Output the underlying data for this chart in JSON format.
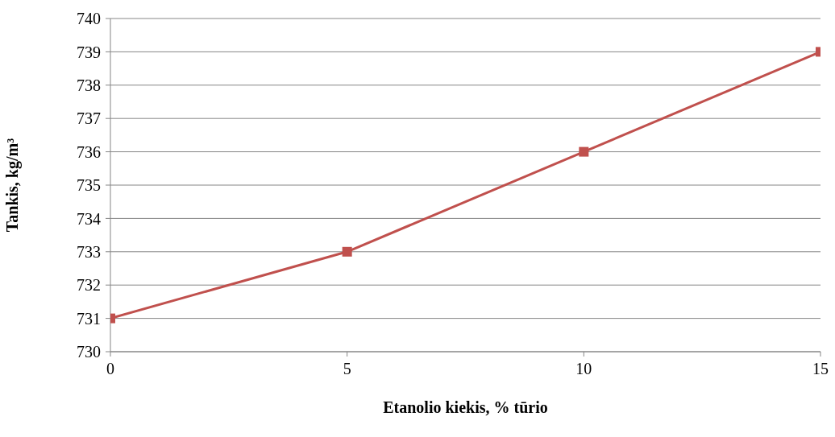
{
  "chart_data": {
    "type": "line",
    "xlabel": "Etanolio kiekis, % tūrio",
    "ylabel": "Tankis, kg/m³",
    "x": [
      0,
      5,
      10,
      15
    ],
    "series": [
      {
        "color": "#c0504d",
        "values": [
          731,
          733,
          736,
          739
        ]
      }
    ],
    "xlim": [
      0,
      15
    ],
    "xticks": [
      0,
      5,
      10,
      15
    ],
    "ylim": [
      730,
      740
    ],
    "yticks": [
      730,
      731,
      732,
      733,
      734,
      735,
      736,
      737,
      738,
      739,
      740
    ],
    "grid": "y",
    "marker": "square",
    "line_style": "solid"
  }
}
